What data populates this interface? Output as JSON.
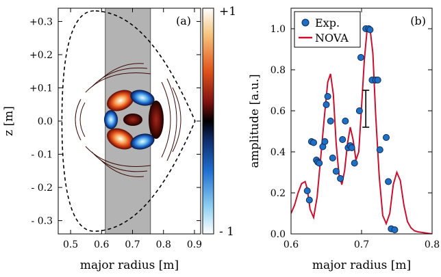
{
  "colors": {
    "accent_line": "#c8102e",
    "marker_fill": "#1f6fc5",
    "marker_edge": "#0b2a55",
    "shade": "#b3b3b3"
  },
  "chart_data": [
    {
      "type": "heatmap",
      "panel_tag": "(a)",
      "xlabel": "major radius [m]",
      "ylabel": "z [m]",
      "xlim": [
        0.46,
        0.92
      ],
      "ylim": [
        -0.34,
        0.34
      ],
      "x_ticks": [
        "0.5",
        "0.6",
        "0.7",
        "0.8",
        "0.9"
      ],
      "x_tick_values": [
        0.5,
        0.6,
        0.7,
        0.8,
        0.9
      ],
      "y_ticks": [
        "+0.3",
        "+0.2",
        "+0.1",
        "0.0",
        "- 0.1",
        "- 0.2",
        "- 0.3"
      ],
      "y_tick_values": [
        0.3,
        0.2,
        0.1,
        0.0,
        -0.1,
        -0.2,
        -0.3
      ],
      "shaded_region_x": [
        0.612,
        0.758
      ],
      "colorbar": {
        "max_label": "+1",
        "min_label": "- 1",
        "range": [
          -1,
          1
        ]
      },
      "boundary_shape": "dashed D-shaped plasma boundary"
    },
    {
      "type": "scatter",
      "panel_tag": "(b)",
      "xlabel": "major radius [m]",
      "ylabel": "amplitude [a.u.]",
      "xlim": [
        0.6,
        0.8
      ],
      "ylim": [
        0.0,
        1.1
      ],
      "x_ticks": [
        "0.6",
        "0.7",
        "0.8"
      ],
      "x_tick_values": [
        0.6,
        0.7,
        0.8
      ],
      "y_ticks": [
        "0.0",
        "0.2",
        "0.4",
        "0.6",
        "0.8",
        "1.0"
      ],
      "y_tick_values": [
        0.0,
        0.2,
        0.4,
        0.6,
        0.8,
        1.0
      ],
      "legend_position": "top-left",
      "series": [
        {
          "name": "Exp.",
          "kind": "points",
          "x": [
            0.623,
            0.626,
            0.629,
            0.632,
            0.636,
            0.638,
            0.64,
            0.645,
            0.648,
            0.65,
            0.652,
            0.656,
            0.659,
            0.664,
            0.67,
            0.673,
            0.677,
            0.681,
            0.684,
            0.686,
            0.69,
            0.697,
            0.699,
            0.706,
            0.71,
            0.712,
            0.715,
            0.72,
            0.723,
            0.726,
            0.735,
            0.738,
            0.742,
            0.747
          ],
          "y": [
            0.21,
            0.165,
            0.45,
            0.445,
            0.36,
            0.35,
            0.345,
            0.425,
            0.45,
            0.63,
            0.67,
            0.55,
            0.37,
            0.305,
            0.27,
            0.46,
            0.55,
            0.42,
            0.43,
            0.42,
            0.345,
            0.6,
            0.86,
            1.0,
            1.0,
            0.995,
            0.75,
            0.75,
            0.75,
            0.41,
            0.47,
            0.255,
            0.025,
            0.02
          ]
        },
        {
          "name": "NOVA",
          "kind": "line",
          "x": [
            0.6,
            0.605,
            0.61,
            0.615,
            0.62,
            0.623,
            0.627,
            0.632,
            0.637,
            0.642,
            0.647,
            0.652,
            0.656,
            0.66,
            0.664,
            0.668,
            0.672,
            0.676,
            0.68,
            0.684,
            0.688,
            0.692,
            0.696,
            0.7,
            0.704,
            0.708,
            0.712,
            0.716,
            0.72,
            0.725,
            0.73,
            0.735,
            0.74,
            0.745,
            0.75,
            0.755,
            0.76,
            0.765,
            0.77,
            0.775,
            0.78,
            0.79,
            0.8
          ],
          "y": [
            0.1,
            0.14,
            0.2,
            0.245,
            0.255,
            0.22,
            0.12,
            0.08,
            0.18,
            0.37,
            0.56,
            0.74,
            0.78,
            0.68,
            0.44,
            0.29,
            0.24,
            0.31,
            0.44,
            0.52,
            0.46,
            0.36,
            0.4,
            0.62,
            0.85,
            1.0,
            1.0,
            0.88,
            0.58,
            0.28,
            0.09,
            0.05,
            0.1,
            0.24,
            0.3,
            0.26,
            0.14,
            0.06,
            0.03,
            0.015,
            0.01,
            0.005,
            0.0
          ]
        },
        {
          "name": "",
          "kind": "errorbar",
          "x": [
            0.706
          ],
          "y": [
            0.61
          ],
          "yerr": [
            0.09
          ]
        }
      ]
    }
  ]
}
